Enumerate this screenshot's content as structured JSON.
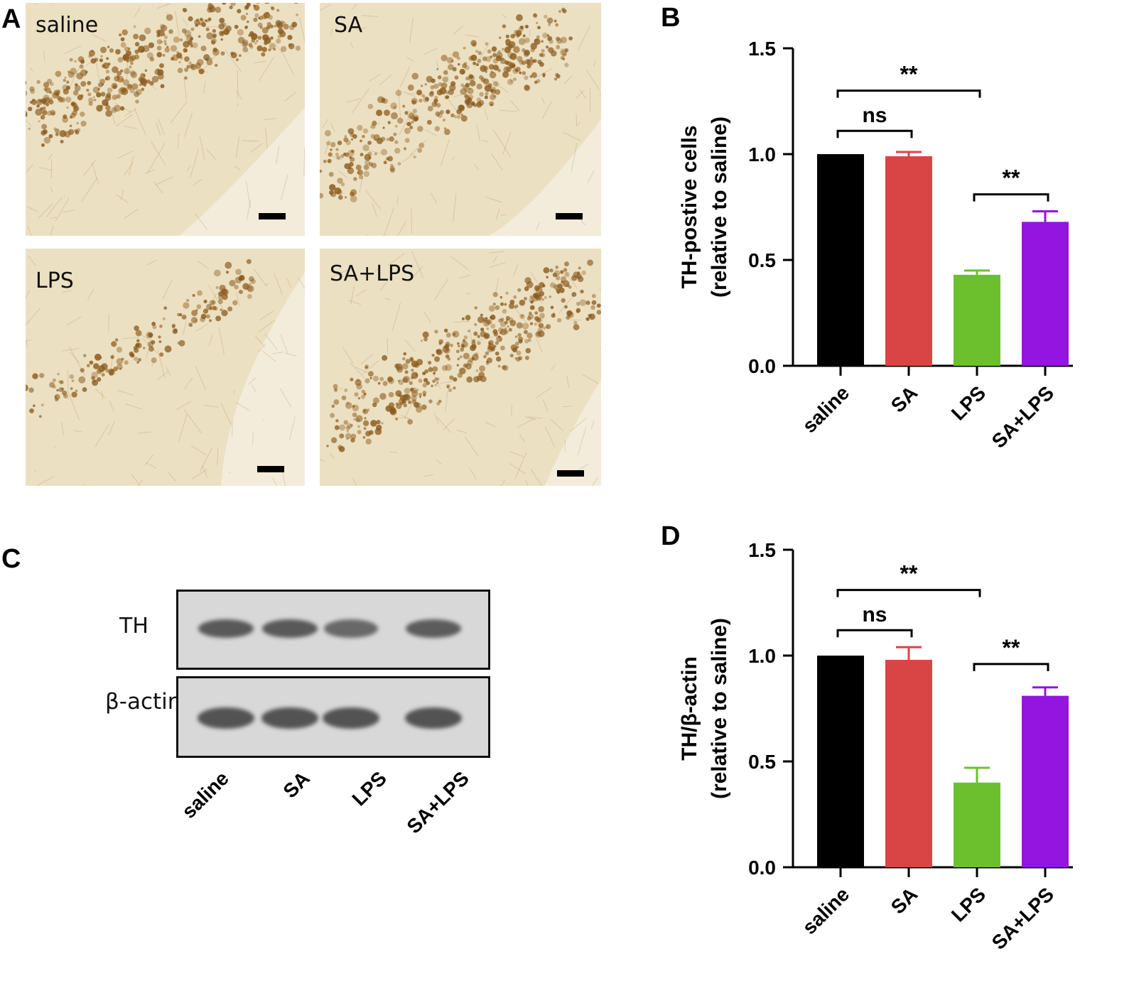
{
  "panel_letters": {
    "a": "A",
    "b": "B",
    "c": "C",
    "d": "D"
  },
  "micrographs": [
    {
      "label": "saline"
    },
    {
      "label": "SA"
    },
    {
      "label": "LPS"
    },
    {
      "label": "SA+LPS"
    }
  ],
  "western_blot": {
    "rows": [
      "TH",
      "β-actin"
    ],
    "lanes": [
      "saline",
      "SA",
      "LPS",
      "SA+LPS"
    ],
    "band_intensity": {
      "TH": [
        0.85,
        0.85,
        0.6,
        0.8
      ],
      "β-actin": [
        0.95,
        0.95,
        0.95,
        0.95
      ]
    }
  },
  "colors": {
    "saline": "#000000",
    "SA": "#d94545",
    "LPS": "#6cc02e",
    "SA+LPS": "#9414e0",
    "stain": "#8a5a1c",
    "tissue": "#ece0c2"
  },
  "chart_data": [
    {
      "type": "bar",
      "panel": "B",
      "categories": [
        "saline",
        "SA",
        "LPS",
        "SA+LPS"
      ],
      "values": [
        1.0,
        0.99,
        0.43,
        0.68
      ],
      "errors": [
        0.0,
        0.02,
        0.02,
        0.05
      ],
      "ylabel_line1": "TH-postive cells",
      "ylabel_line2": "(relative to saline)",
      "ylim": [
        0,
        1.5
      ],
      "yticks": [
        "0.0",
        "0.5",
        "1.0",
        "1.5"
      ],
      "significance": [
        {
          "from": 0,
          "to": 2,
          "label": "**",
          "y": 1.3
        },
        {
          "from": 0,
          "to": 1,
          "label": "ns",
          "y": 1.11
        },
        {
          "from": 2,
          "to": 3,
          "label": "**",
          "y": 0.81
        }
      ]
    },
    {
      "type": "bar",
      "panel": "D",
      "categories": [
        "saline",
        "SA",
        "LPS",
        "SA+LPS"
      ],
      "values": [
        1.0,
        0.98,
        0.4,
        0.81
      ],
      "errors": [
        0.0,
        0.06,
        0.07,
        0.04
      ],
      "ylabel_line1": "TH/β-actin",
      "ylabel_line2": "(relative to saline)",
      "ylim": [
        0,
        1.5
      ],
      "yticks": [
        "0.0",
        "0.5",
        "1.0",
        "1.5"
      ],
      "significance": [
        {
          "from": 0,
          "to": 2,
          "label": "**",
          "y": 1.31
        },
        {
          "from": 0,
          "to": 1,
          "label": "ns",
          "y": 1.12
        },
        {
          "from": 2,
          "to": 3,
          "label": "**",
          "y": 0.96
        }
      ]
    }
  ]
}
